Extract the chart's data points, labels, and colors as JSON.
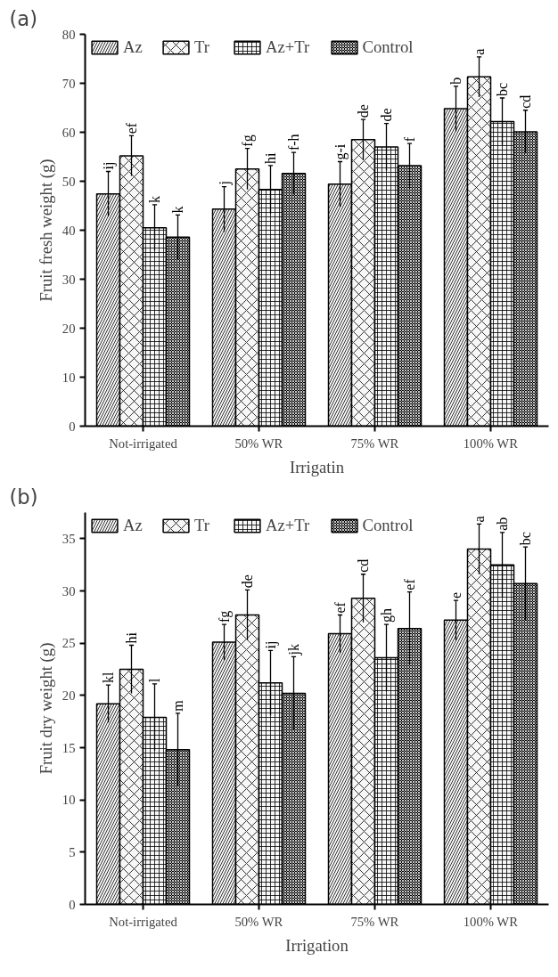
{
  "chart_data": [
    {
      "type": "bar",
      "annotations": [
        "(a)"
      ],
      "xlabel": "Irrigatin",
      "ylabel": "Fruit fresh weight (g)",
      "categories": [
        "Not-irrigated",
        "50% WR",
        "75% WR",
        "100% WR"
      ],
      "ylim": [
        0,
        80
      ],
      "yticks": [
        0,
        10,
        20,
        30,
        40,
        50,
        60,
        70,
        80
      ],
      "grid": false,
      "legend": "top left",
      "series": [
        {
          "name": "Az",
          "color": "#f7f7f7",
          "values": [
            47.4,
            44.3,
            49.4,
            64.8
          ],
          "errors": [
            4.6,
            4.6,
            4.6,
            4.6
          ],
          "value_labels": [
            "ij",
            "j",
            "g-i",
            "b"
          ]
        },
        {
          "name": "Tr",
          "color": "#f7f7f7",
          "values": [
            55.2,
            52.5,
            58.5,
            71.3
          ],
          "errors": [
            4.1,
            4.2,
            4.1,
            4.1
          ],
          "value_labels": [
            "ef",
            "fg",
            "de",
            "a"
          ]
        },
        {
          "name": "Az+Tr",
          "color": "#f7f7f7",
          "values": [
            40.5,
            48.3,
            57.0,
            62.2
          ],
          "errors": [
            4.7,
            4.9,
            4.8,
            4.8
          ],
          "value_labels": [
            "k",
            "hi",
            "de",
            "bc"
          ]
        },
        {
          "name": "Control",
          "color": "#000000",
          "values": [
            38.6,
            51.6,
            53.2,
            60.1
          ],
          "errors": [
            4.5,
            4.3,
            4.5,
            4.4
          ],
          "value_labels": [
            "k",
            "f-h",
            "f",
            "cd"
          ]
        }
      ]
    },
    {
      "type": "bar",
      "annotations": [
        "(b)"
      ],
      "xlabel": "Irrigation",
      "ylabel": "Fruit dry weight (g)",
      "categories": [
        "Not-irrigated",
        "50% WR",
        "75% WR",
        "100% WR"
      ],
      "ylim": [
        0,
        37.5
      ],
      "yticks": [
        0,
        5,
        10,
        15,
        20,
        25,
        30,
        35
      ],
      "grid": false,
      "legend": "top left",
      "series": [
        {
          "name": "Az",
          "color": "#f7f7f7",
          "values": [
            19.2,
            25.1,
            25.9,
            27.2
          ],
          "errors": [
            1.8,
            1.7,
            1.8,
            1.9
          ],
          "value_labels": [
            "kl",
            "fg",
            "ef",
            "e"
          ]
        },
        {
          "name": "Tr",
          "color": "#f7f7f7",
          "values": [
            22.5,
            27.7,
            29.3,
            34.0
          ],
          "errors": [
            2.3,
            2.4,
            2.3,
            2.4
          ],
          "value_labels": [
            "hi",
            "de",
            "cd",
            "a"
          ]
        },
        {
          "name": "Az+Tr",
          "color": "#f7f7f7",
          "values": [
            17.9,
            21.2,
            23.6,
            32.5
          ],
          "errors": [
            3.2,
            3.1,
            3.2,
            3.1
          ],
          "value_labels": [
            "l",
            "ij",
            "gh",
            "ab"
          ]
        },
        {
          "name": "Control",
          "color": "#000000",
          "values": [
            14.8,
            20.2,
            26.4,
            30.7
          ],
          "errors": [
            3.5,
            3.5,
            3.5,
            3.5
          ],
          "value_labels": [
            "m",
            "jk",
            "ef",
            "bc"
          ]
        }
      ]
    }
  ]
}
